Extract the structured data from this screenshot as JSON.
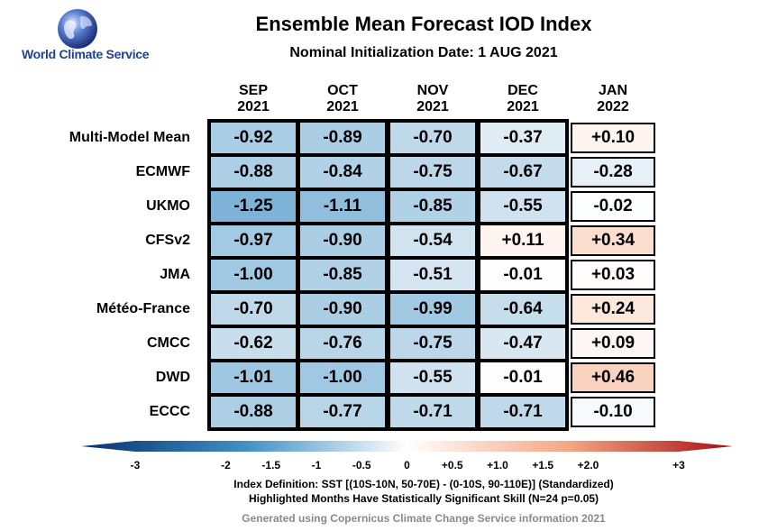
{
  "logo": {
    "text": "World Climate Service",
    "icon": "globe-icon"
  },
  "chart_data": {
    "type": "table",
    "title": "Ensemble Mean Forecast IOD Index",
    "subtitle": "Nominal Initialization Date: 1 AUG 2021",
    "columns": [
      {
        "month": "SEP",
        "year": "2021"
      },
      {
        "month": "OCT",
        "year": "2021"
      },
      {
        "month": "NOV",
        "year": "2021"
      },
      {
        "month": "DEC",
        "year": "2021"
      },
      {
        "month": "JAN",
        "year": "2022"
      }
    ],
    "rows": [
      {
        "model": "Multi-Model Mean",
        "values": [
          -0.92,
          -0.89,
          -0.7,
          -0.37,
          0.1
        ],
        "labels": [
          "-0.92",
          "-0.89",
          "-0.70",
          "-0.37",
          "+0.10"
        ]
      },
      {
        "model": "ECMWF",
        "values": [
          -0.88,
          -0.84,
          -0.75,
          -0.67,
          -0.28
        ],
        "labels": [
          "-0.88",
          "-0.84",
          "-0.75",
          "-0.67",
          "-0.28"
        ]
      },
      {
        "model": "UKMO",
        "values": [
          -1.25,
          -1.11,
          -0.85,
          -0.55,
          -0.02
        ],
        "labels": [
          "-1.25",
          "-1.11",
          "-0.85",
          "-0.55",
          "-0.02"
        ]
      },
      {
        "model": "CFSv2",
        "values": [
          -0.97,
          -0.9,
          -0.54,
          0.11,
          0.34
        ],
        "labels": [
          "-0.97",
          "-0.90",
          "-0.54",
          "+0.11",
          "+0.34"
        ]
      },
      {
        "model": "JMA",
        "values": [
          -1.0,
          -0.85,
          -0.51,
          -0.01,
          0.03
        ],
        "labels": [
          "-1.00",
          "-0.85",
          "-0.51",
          "-0.01",
          "+0.03"
        ]
      },
      {
        "model": "Météo-France",
        "values": [
          -0.7,
          -0.9,
          -0.99,
          -0.64,
          0.24
        ],
        "labels": [
          "-0.70",
          "-0.90",
          "-0.99",
          "-0.64",
          "+0.24"
        ]
      },
      {
        "model": "CMCC",
        "values": [
          -0.62,
          -0.76,
          -0.75,
          -0.47,
          0.09
        ],
        "labels": [
          "-0.62",
          "-0.76",
          "-0.75",
          "-0.47",
          "+0.09"
        ]
      },
      {
        "model": "DWD",
        "values": [
          -1.01,
          -1.0,
          -0.55,
          -0.01,
          0.46
        ],
        "labels": [
          "-1.01",
          "-1.00",
          "-0.55",
          "-0.01",
          "+0.46"
        ]
      },
      {
        "model": "ECCC",
        "values": [
          -0.88,
          -0.77,
          -0.71,
          -0.71,
          -0.1
        ],
        "labels": [
          "-0.88",
          "-0.77",
          "-0.71",
          "-0.71",
          "-0.10"
        ]
      }
    ],
    "highlighted_columns": [
      0,
      1,
      2,
      3
    ],
    "highlight_border_color": "#000000",
    "colorbar": {
      "range": [
        -3,
        3
      ],
      "ticks": [
        -3,
        -2,
        -1.5,
        -1,
        -0.5,
        0,
        0.5,
        1.0,
        1.5,
        2.0,
        3
      ],
      "tick_labels": [
        "-3",
        "-2",
        "-1.5",
        "-1",
        "-0.5",
        "0",
        "+0.5",
        "+1.0",
        "+1.5",
        "+2.0",
        "+3"
      ],
      "colormap": "blue-white-red",
      "color_negative_max": "#08306b",
      "color_zero": "#ffffff",
      "color_positive_max": "#a50f15"
    }
  },
  "footer": {
    "definition": "Index Definition: SST [(10S-10N, 50-70E) - (0-10S, 90-110E)] (Standardized)",
    "skill_note": "Highlighted Months Have Statistically Significant Skill (N=24 p=0.05)",
    "credit": "Generated using Copernicus Climate Change Service information 2021"
  }
}
